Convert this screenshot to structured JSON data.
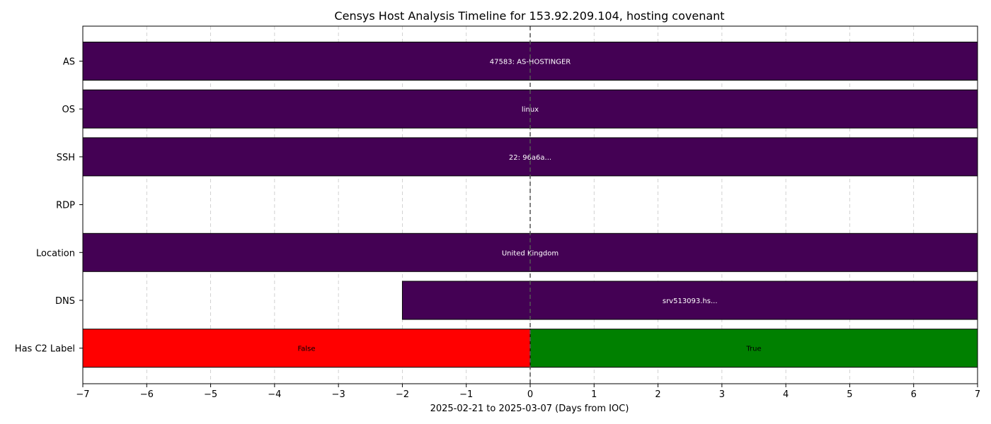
{
  "chart_data": {
    "type": "bar",
    "orientation": "horizontal-timeline",
    "title": "Censys Host Analysis Timeline for 153.92.209.104, hosting covenant",
    "xlabel": "2025-02-21 to 2025-03-07 (Days from IOC)",
    "ylabel": "",
    "xlim": [
      -7,
      7
    ],
    "xticks": [
      -7,
      -6,
      -5,
      -4,
      -3,
      -2,
      -1,
      0,
      1,
      2,
      3,
      4,
      5,
      6,
      7
    ],
    "grid": true,
    "ioc_marker_x": 0,
    "categories": [
      "AS",
      "OS",
      "SSH",
      "RDP",
      "Location",
      "DNS",
      "Has C2 Label"
    ],
    "rows": [
      {
        "label": "AS",
        "segments": [
          {
            "start": -7,
            "end": 7,
            "text": "47583: AS-HOSTINGER",
            "color": "#440154",
            "text_color": "#ffffff"
          }
        ]
      },
      {
        "label": "OS",
        "segments": [
          {
            "start": -7,
            "end": 7,
            "text": "linux",
            "color": "#440154",
            "text_color": "#ffffff"
          }
        ]
      },
      {
        "label": "SSH",
        "segments": [
          {
            "start": -7,
            "end": 7,
            "text": "22: 96a6a...",
            "color": "#440154",
            "text_color": "#ffffff"
          }
        ]
      },
      {
        "label": "RDP",
        "segments": []
      },
      {
        "label": "Location",
        "segments": [
          {
            "start": -7,
            "end": 7,
            "text": "United Kingdom",
            "color": "#440154",
            "text_color": "#ffffff"
          }
        ]
      },
      {
        "label": "DNS",
        "segments": [
          {
            "start": -2,
            "end": 7,
            "text": "srv513093.hs...",
            "color": "#440154",
            "text_color": "#ffffff"
          }
        ]
      },
      {
        "label": "Has C2 Label",
        "segments": [
          {
            "start": -7,
            "end": 0,
            "text": "False",
            "color": "#ff0000",
            "text_color": "#000000"
          },
          {
            "start": 0,
            "end": 7,
            "text": "True",
            "color": "#008000",
            "text_color": "#000000"
          }
        ]
      }
    ]
  }
}
